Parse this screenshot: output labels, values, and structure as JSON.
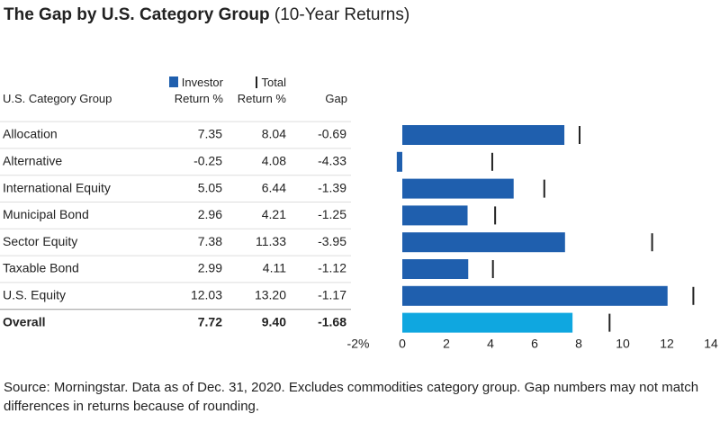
{
  "chart_data": {
    "type": "bar",
    "title": "The Gap by U.S. Category Group",
    "subtitle": "(10-Year Returns)",
    "category_label": "U.S. Category Group",
    "categories": [
      "Allocation",
      "Alternative",
      "International Equity",
      "Municipal Bond",
      "Sector Equity",
      "Taxable Bond",
      "U.S. Equity",
      "Overall"
    ],
    "series": [
      {
        "name": "Investor Return %",
        "color": "#1f5fae",
        "highlight_color": "#0fa7e0",
        "values": [
          7.35,
          -0.25,
          5.05,
          2.96,
          7.38,
          2.99,
          12.03,
          7.72
        ]
      },
      {
        "name": "Total Return %",
        "color": "#222222",
        "values": [
          8.04,
          4.08,
          6.44,
          4.21,
          11.33,
          4.11,
          13.2,
          9.4
        ],
        "value_labels": [
          "8.04",
          "4.08",
          "6.44",
          "4.21",
          "11.33",
          "4.11",
          "13.20",
          "9.40"
        ]
      }
    ],
    "gap": {
      "name": "Gap",
      "values": [
        -0.69,
        -4.33,
        -1.39,
        -1.25,
        -3.95,
        -1.12,
        -1.17,
        -1.68
      ]
    },
    "xlim": [
      -2,
      14
    ],
    "xticks": [
      {
        "value": -2,
        "label": "-2%"
      },
      0,
      2,
      4,
      6,
      8,
      10,
      12,
      14
    ],
    "note": "Source: Morningstar. Data as of Dec. 31, 2020. Excludes commodities category group. Gap numbers may not match differences in returns because of rounding."
  }
}
